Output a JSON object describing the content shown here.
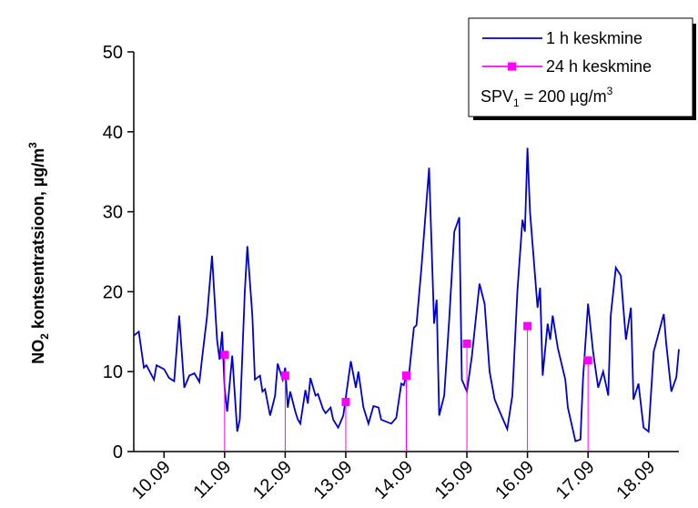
{
  "chart_data": {
    "type": "line",
    "y_label": {
      "main": "NO",
      "sub": "2",
      "rest": " kontsentratsioon, µg/m",
      "sup": "3"
    },
    "xlim": [
      0,
      216
    ],
    "ylim": [
      0,
      50
    ],
    "yticks": [
      0,
      10,
      20,
      30,
      40,
      50
    ],
    "xticks": [
      {
        "value": 12,
        "label": "10.09"
      },
      {
        "value": 36,
        "label": "11.09"
      },
      {
        "value": 60,
        "label": "12.09"
      },
      {
        "value": 84,
        "label": "13.09"
      },
      {
        "value": 108,
        "label": "14.09"
      },
      {
        "value": 132,
        "label": "15.09"
      },
      {
        "value": 156,
        "label": "16.09"
      },
      {
        "value": 180,
        "label": "17.09"
      },
      {
        "value": 204,
        "label": "18.09"
      }
    ],
    "grid": false,
    "legend": "top-right",
    "annotation": {
      "main": "SPV",
      "sub": "1",
      "rest": " = 200 µg/m",
      "sup": "3"
    },
    "series": [
      {
        "name": "1 h keskmine",
        "color": "#0000cc",
        "marker": "none",
        "x": [
          0,
          2,
          4,
          5,
          8,
          9,
          12,
          14,
          16,
          18,
          20,
          22,
          24,
          26,
          27,
          29,
          31,
          33,
          34,
          35,
          36,
          37,
          39,
          41,
          42,
          44,
          45,
          47,
          48,
          50,
          51,
          52,
          54,
          56,
          57,
          59,
          60,
          61,
          62,
          64,
          65,
          66,
          68,
          69,
          70,
          72,
          73,
          75,
          76,
          78,
          79,
          81,
          83,
          86,
          88,
          89,
          91,
          93,
          95,
          97,
          98,
          102,
          104,
          106,
          107,
          108,
          109,
          111,
          112,
          114,
          117,
          119,
          120,
          121,
          123,
          125,
          127,
          129,
          130,
          132,
          134,
          137,
          139,
          141,
          143,
          145,
          148,
          150,
          152,
          154,
          155,
          156,
          157,
          160,
          161,
          162,
          164,
          165,
          166,
          168,
          171,
          172,
          175,
          177,
          178,
          180,
          182,
          184,
          186,
          188,
          189,
          191,
          193,
          195,
          197,
          198,
          200,
          202,
          204,
          206,
          210,
          211,
          213,
          215,
          216
        ],
        "values": [
          14.5,
          15,
          10.5,
          10.8,
          9,
          10.8,
          10.3,
          9.2,
          8.8,
          17,
          8,
          9.5,
          9.8,
          8.7,
          11.5,
          16.8,
          24.5,
          14,
          11.5,
          15,
          8,
          5,
          12,
          2.5,
          4,
          20,
          25.7,
          17,
          9,
          9.5,
          7.5,
          7.8,
          4.5,
          7,
          11,
          9,
          10.5,
          5.5,
          7.5,
          5,
          4,
          3.5,
          7.7,
          6,
          9.2,
          7,
          7.2,
          5.3,
          4.8,
          5.5,
          4,
          3,
          4.5,
          11.3,
          8,
          10,
          5.5,
          3.5,
          5.7,
          5.5,
          4,
          3.5,
          4.2,
          8.5,
          8.3,
          9.5,
          9.5,
          15.5,
          15.8,
          23,
          35.5,
          16,
          19,
          4.5,
          7,
          16.5,
          27.5,
          29.3,
          9,
          7.5,
          12,
          21,
          18.5,
          10,
          6.5,
          5,
          2.8,
          7,
          20,
          29,
          27.5,
          38,
          30,
          18,
          20.5,
          9.5,
          16,
          14,
          17,
          13,
          9,
          5.5,
          1.3,
          1.5,
          9,
          18.5,
          12.5,
          8,
          10,
          7,
          17,
          23,
          22,
          14,
          18,
          6.5,
          8.5,
          3,
          2.5,
          12.5,
          17.2,
          13.5,
          7.5,
          9.3,
          12.8
        ]
      },
      {
        "name": "24 h keskmine",
        "color": "#ff00ff",
        "marker": "square",
        "droplines": true,
        "x": [
          36,
          60,
          84,
          108,
          132,
          156,
          180
        ],
        "values": [
          12.1,
          9.5,
          6.2,
          9.5,
          13.5,
          15.7,
          11.4
        ]
      }
    ]
  }
}
